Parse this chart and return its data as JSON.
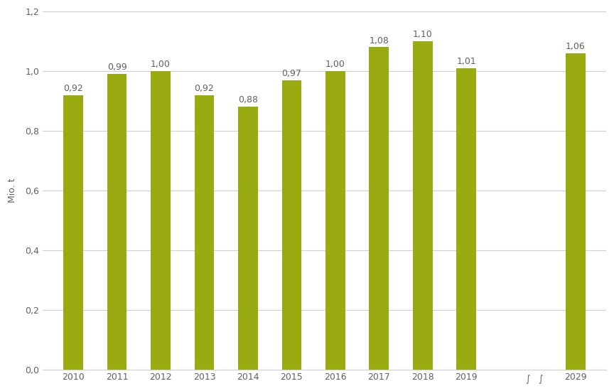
{
  "categories": [
    "2010",
    "2011",
    "2012",
    "2013",
    "2014",
    "2015",
    "2016",
    "2017",
    "2018",
    "2019",
    "2029"
  ],
  "values": [
    0.92,
    0.99,
    1.0,
    0.92,
    0.88,
    0.97,
    1.0,
    1.08,
    1.1,
    1.01,
    1.06
  ],
  "bar_color": "#9aab12",
  "ylabel": "Mio. t",
  "ylim": [
    0,
    1.2
  ],
  "yticks": [
    0.0,
    0.2,
    0.4,
    0.6,
    0.8,
    1.0,
    1.2
  ],
  "ytick_labels": [
    "0,0",
    "0,2",
    "0,4",
    "0,6",
    "0,8",
    "1,0",
    "1,2"
  ],
  "value_labels": [
    "0,92",
    "0,99",
    "1,00",
    "0,92",
    "0,88",
    "0,97",
    "1,00",
    "1,08",
    "1,10",
    "1,01",
    "1,06"
  ],
  "background_color": "#ffffff",
  "grid_color": "#d0d0d0",
  "font_color": "#606060",
  "label_fontsize": 9,
  "tick_fontsize": 9,
  "bar_width": 0.45
}
